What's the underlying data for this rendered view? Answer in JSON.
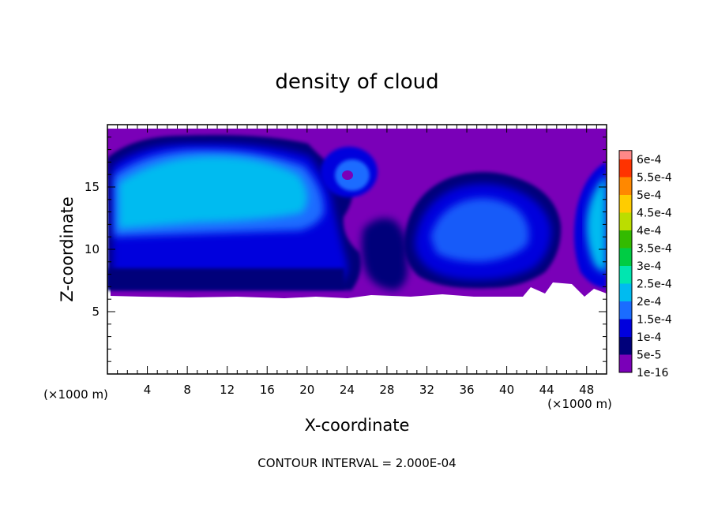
{
  "chart_data": {
    "type": "heatmap",
    "title": "density of cloud",
    "xlabel": "X-coordinate",
    "ylabel": "Z-coordinate",
    "x_unit": "(×1000 m)",
    "y_unit": "(×1000 m)",
    "xlim": [
      0,
      50
    ],
    "ylim": [
      0,
      20
    ],
    "x_ticks": [
      4,
      8,
      12,
      16,
      20,
      24,
      28,
      32,
      36,
      40,
      44,
      48
    ],
    "y_ticks": [
      5,
      10,
      15
    ],
    "colorbar": {
      "levels": [
        "1e-16",
        "5e-5",
        "1e-4",
        "1.5e-4",
        "2e-4",
        "2.5e-4",
        "3e-4",
        "3.5e-4",
        "4e-4",
        "4.5e-4",
        "5e-4",
        "5.5e-4",
        "6e-4"
      ],
      "colors": [
        "#7a00b8",
        "#00007a",
        "#0000dd",
        "#1a6cff",
        "#00bbf0",
        "#00e6b0",
        "#00cc44",
        "#33bb00",
        "#bbdd00",
        "#ffcc00",
        "#ff8800",
        "#ff3300",
        "#ff8888"
      ]
    },
    "footnote": "CONTOUR INTERVAL = 2.000E-04"
  }
}
